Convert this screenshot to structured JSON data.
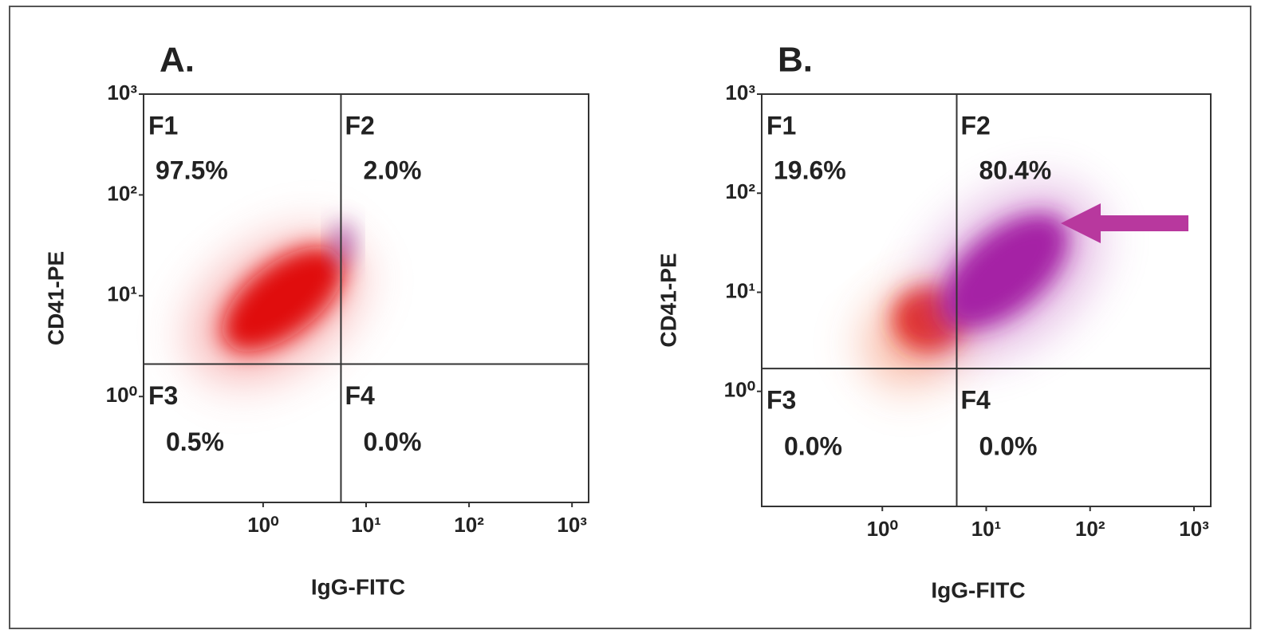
{
  "panels": [
    {
      "title": "A.",
      "x_label": "IgG-FITC",
      "y_label": "CD41-PE",
      "log_scale": true,
      "xlim": [
        0.069,
        1450
      ],
      "ylim": [
        0.089,
        1000
      ],
      "xticks": [
        {
          "value": 1,
          "label": "10⁰"
        },
        {
          "value": 10,
          "label": "10¹"
        },
        {
          "value": 100,
          "label": "10²"
        },
        {
          "value": 1000,
          "label": "10³"
        }
      ],
      "yticks": [
        {
          "value": 1,
          "label": "10⁰"
        },
        {
          "value": 10,
          "label": "10¹"
        },
        {
          "value": 100,
          "label": "10²"
        },
        {
          "value": 1000,
          "label": "10³"
        }
      ],
      "gate": {
        "x": 5.7,
        "y": 2.1
      },
      "quadrants": [
        {
          "name": "F1",
          "percent": "97.5%"
        },
        {
          "name": "F2",
          "percent": "2.0%"
        },
        {
          "name": "F3",
          "percent": "0.5%"
        },
        {
          "name": "F4",
          "percent": "0.0%"
        }
      ]
    },
    {
      "title": "B.",
      "x_label": "IgG-FITC",
      "y_label": "CD41-PE",
      "log_scale": true,
      "xlim": [
        0.069,
        1450
      ],
      "ylim": [
        0.069,
        1000
      ],
      "xticks": [
        {
          "value": 1,
          "label": "10⁰"
        },
        {
          "value": 10,
          "label": "10¹"
        },
        {
          "value": 100,
          "label": "10²"
        },
        {
          "value": 1000,
          "label": "10³"
        }
      ],
      "yticks": [
        {
          "value": 1,
          "label": "10⁰"
        },
        {
          "value": 10,
          "label": "10¹"
        },
        {
          "value": 100,
          "label": "10²"
        },
        {
          "value": 1000,
          "label": "10³"
        }
      ],
      "gate": {
        "x": 5.2,
        "y": 1.7
      },
      "quadrants": [
        {
          "name": "F1",
          "percent": "19.6%"
        },
        {
          "name": "F2",
          "percent": "80.4%"
        },
        {
          "name": "F3",
          "percent": "0.0%"
        },
        {
          "name": "F4",
          "percent": "0.0%"
        }
      ]
    }
  ]
}
